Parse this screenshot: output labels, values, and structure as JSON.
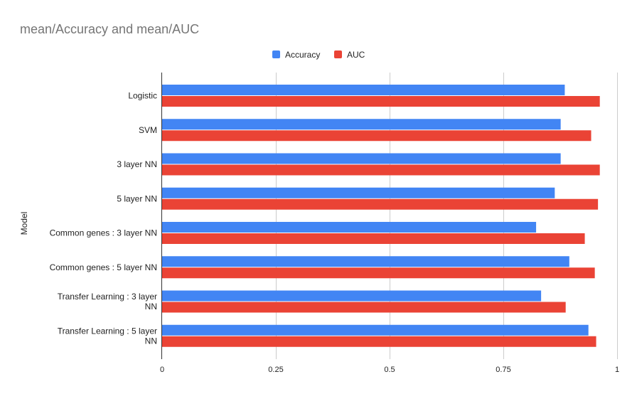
{
  "chart_data": {
    "type": "bar",
    "orientation": "horizontal",
    "title": "mean/Accuracy and mean/AUC",
    "ylabel": "Model",
    "xlabel": "",
    "categories": [
      [
        "Logistic"
      ],
      [
        "SVM"
      ],
      [
        "3 layer NN"
      ],
      [
        "5 layer NN"
      ],
      [
        "Common genes : 3 layer NN"
      ],
      [
        "Common genes : 5 layer NN"
      ],
      [
        "Transfer Learning : 3 layer",
        "NN"
      ],
      [
        "Transfer Learning : 5 layer",
        "NN"
      ]
    ],
    "series": [
      {
        "name": "Accuracy",
        "color": "#4285f4",
        "values": [
          0.885,
          0.876,
          0.876,
          0.863,
          0.822,
          0.895,
          0.833,
          0.937
        ]
      },
      {
        "name": "AUC",
        "color": "#ea4335",
        "values": [
          0.962,
          0.943,
          0.962,
          0.958,
          0.929,
          0.951,
          0.887,
          0.954
        ]
      }
    ],
    "xlim": [
      0,
      1
    ],
    "ticks": [
      {
        "value": 0,
        "label": "0"
      },
      {
        "value": 0.25,
        "label": "0.25"
      },
      {
        "value": 0.5,
        "label": "0.5"
      },
      {
        "value": 0.75,
        "label": "0.75"
      },
      {
        "value": 1,
        "label": "1"
      }
    ],
    "grid": true,
    "legend_position": "top"
  }
}
